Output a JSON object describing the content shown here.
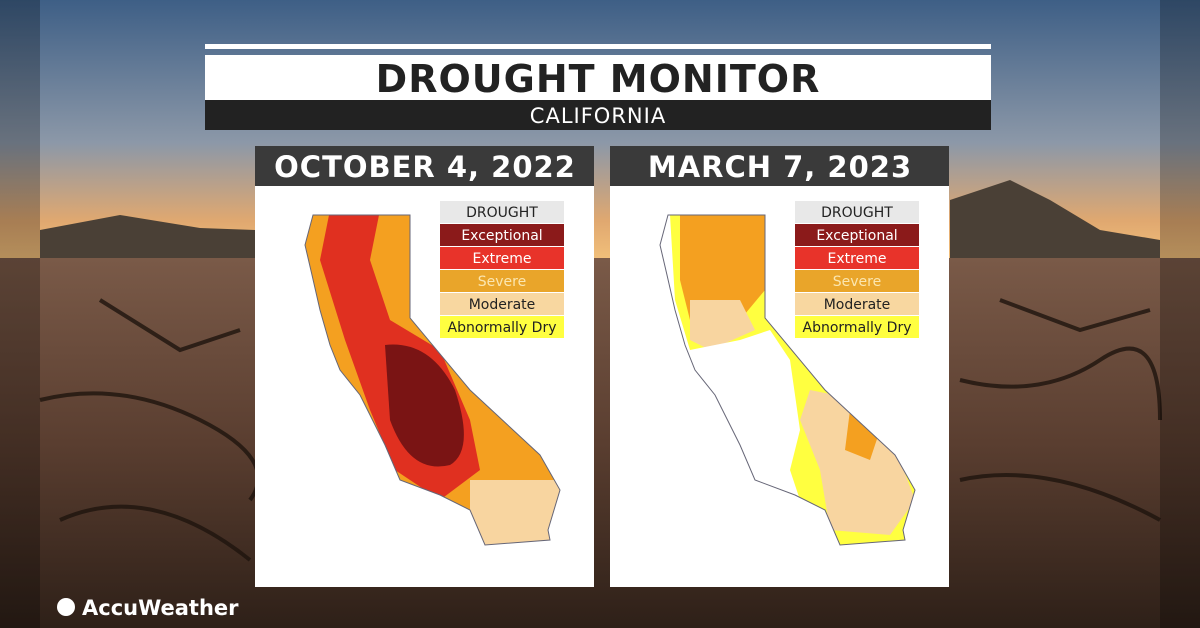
{
  "header": {
    "title": "DROUGHT MONITOR",
    "subtitle": "CALIFORNIA"
  },
  "panels": [
    {
      "date": "OCTOBER 4, 2022",
      "legend": {
        "title": "DROUGHT",
        "items": [
          "Exceptional",
          "Extreme",
          "Severe",
          "Moderate",
          "Abnormally Dry"
        ]
      }
    },
    {
      "date": "MARCH 7, 2023",
      "legend": {
        "title": "DROUGHT",
        "items": [
          "Exceptional",
          "Extreme",
          "Severe",
          "Moderate",
          "Abnormally Dry"
        ]
      }
    }
  ],
  "brand": "AccuWeather"
}
